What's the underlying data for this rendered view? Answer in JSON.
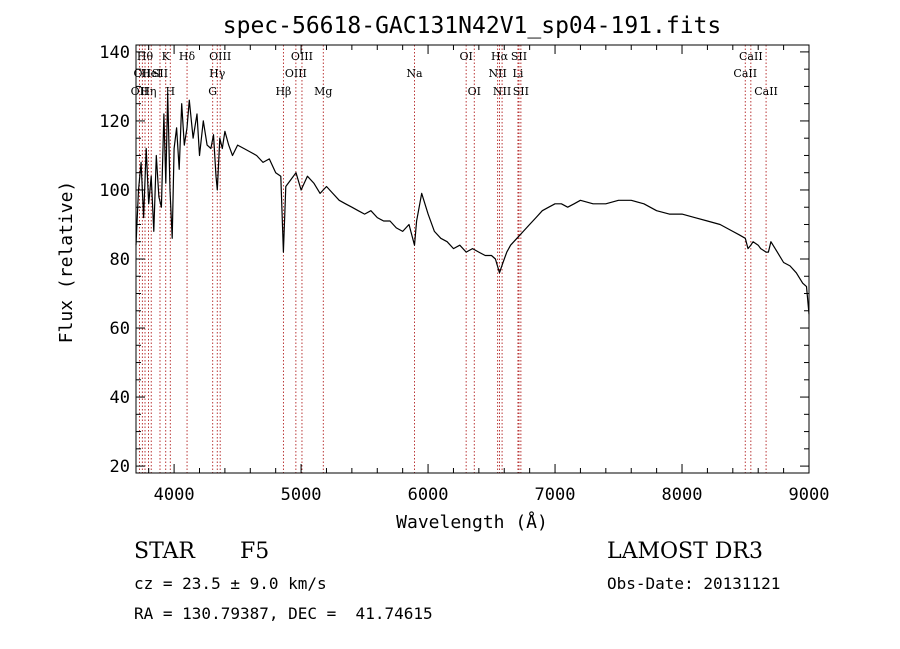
{
  "chart_data": {
    "type": "line",
    "title": "spec-56618-GAC131N42V1_sp04-191.fits",
    "xlabel": "Wavelength (Å)",
    "ylabel": "Flux (relative)",
    "xlim": [
      3700,
      9000
    ],
    "ylim": [
      18,
      142
    ],
    "x_ticks": [
      4000,
      5000,
      6000,
      7000,
      8000,
      9000
    ],
    "y_ticks": [
      20,
      40,
      60,
      80,
      100,
      120,
      140
    ],
    "series": [
      {
        "name": "flux",
        "x": [
          3700,
          3720,
          3740,
          3760,
          3780,
          3800,
          3820,
          3840,
          3860,
          3880,
          3900,
          3920,
          3935,
          3950,
          3968,
          3985,
          4000,
          4020,
          4040,
          4060,
          4080,
          4102,
          4120,
          4150,
          4180,
          4200,
          4230,
          4260,
          4290,
          4310,
          4330,
          4340,
          4360,
          4380,
          4400,
          4430,
          4460,
          4500,
          4550,
          4600,
          4650,
          4700,
          4750,
          4800,
          4840,
          4861,
          4880,
          4920,
          4960,
          5000,
          5050,
          5100,
          5150,
          5200,
          5250,
          5300,
          5350,
          5400,
          5450,
          5500,
          5550,
          5600,
          5650,
          5700,
          5750,
          5800,
          5850,
          5893,
          5910,
          5950,
          6000,
          6050,
          6100,
          6150,
          6200,
          6250,
          6300,
          6350,
          6400,
          6450,
          6500,
          6530,
          6563,
          6590,
          6620,
          6650,
          6700,
          6750,
          6800,
          6850,
          6900,
          6950,
          7000,
          7050,
          7100,
          7150,
          7200,
          7300,
          7400,
          7500,
          7600,
          7700,
          7800,
          7900,
          8000,
          8100,
          8200,
          8300,
          8400,
          8450,
          8498,
          8520,
          8542,
          8560,
          8600,
          8620,
          8662,
          8680,
          8700,
          8750,
          8800,
          8850,
          8900,
          8950,
          8980,
          9000
        ],
        "y": [
          84,
          100,
          108,
          92,
          112,
          96,
          104,
          88,
          110,
          98,
          95,
          122,
          102,
          128,
          100,
          86,
          112,
          118,
          106,
          125,
          113,
          118,
          126,
          115,
          122,
          110,
          120,
          113,
          112,
          116,
          104,
          100,
          115,
          112,
          117,
          113,
          110,
          113,
          112,
          111,
          110,
          108,
          109,
          105,
          104,
          82,
          101,
          103,
          105,
          100,
          104,
          102,
          99,
          101,
          99,
          97,
          96,
          95,
          94,
          93,
          94,
          92,
          91,
          91,
          89,
          88,
          90,
          84,
          91,
          99,
          93,
          88,
          86,
          85,
          83,
          84,
          82,
          83,
          82,
          81,
          81,
          80,
          76,
          79,
          82,
          84,
          86,
          88,
          90,
          92,
          94,
          95,
          96,
          96,
          95,
          96,
          97,
          96,
          96,
          97,
          97,
          96,
          94,
          93,
          93,
          92,
          91,
          90,
          88,
          87,
          86,
          83,
          84,
          85,
          84,
          83,
          82,
          82,
          85,
          82,
          79,
          78,
          76,
          73,
          72,
          64
        ]
      }
    ],
    "lines": [
      {
        "lambda": 3727,
        "label": "OII",
        "row": 2
      },
      {
        "lambda": 3750,
        "label": "OII",
        "row": 1
      },
      {
        "lambda": 3771,
        "label": "Hθ",
        "row": 0
      },
      {
        "lambda": 3798,
        "label": "Hη",
        "row": 2
      },
      {
        "lambda": 3820,
        "label": "HeI",
        "row": 1
      },
      {
        "lambda": 3889,
        "label": "SII",
        "row": 1
      },
      {
        "lambda": 3934,
        "label": "K",
        "row": 0
      },
      {
        "lambda": 3970,
        "label": "H",
        "row": 2
      },
      {
        "lambda": 4102,
        "label": "Hδ",
        "row": 0
      },
      {
        "lambda": 4304,
        "label": "G",
        "row": 2
      },
      {
        "lambda": 4340,
        "label": "Hγ",
        "row": 1
      },
      {
        "lambda": 4363,
        "label": "OIII",
        "row": 0
      },
      {
        "lambda": 4861,
        "label": "Hβ",
        "row": 2
      },
      {
        "lambda": 4959,
        "label": "OIII",
        "row": 1
      },
      {
        "lambda": 5007,
        "label": "OIII",
        "row": 0
      },
      {
        "lambda": 5175,
        "label": "Mg",
        "row": 2
      },
      {
        "lambda": 5893,
        "label": "Na",
        "row": 1
      },
      {
        "lambda": 6300,
        "label": "OI",
        "row": 0
      },
      {
        "lambda": 6364,
        "label": "OI",
        "row": 2
      },
      {
        "lambda": 6548,
        "label": "NII",
        "row": 1
      },
      {
        "lambda": 6563,
        "label": "Hα",
        "row": 0
      },
      {
        "lambda": 6583,
        "label": "NII",
        "row": 2
      },
      {
        "lambda": 6708,
        "label": "Li",
        "row": 1
      },
      {
        "lambda": 6716,
        "label": "SII",
        "row": 0
      },
      {
        "lambda": 6731,
        "label": "SII",
        "row": 2
      },
      {
        "lambda": 8498,
        "label": "CaII",
        "row": 1
      },
      {
        "lambda": 8542,
        "label": "CaII",
        "row": 0
      },
      {
        "lambda": 8662,
        "label": "CaII",
        "row": 2
      }
    ],
    "line_color": "#b22222"
  },
  "info": {
    "object_class": "STAR",
    "subclass": "F5",
    "survey": "LAMOST DR3",
    "redshift": "cz = 23.5 ± 9.0 km/s",
    "obs_date": "Obs-Date: 20131121",
    "coords": "RA = 130.79387, DEC =  41.74615"
  }
}
